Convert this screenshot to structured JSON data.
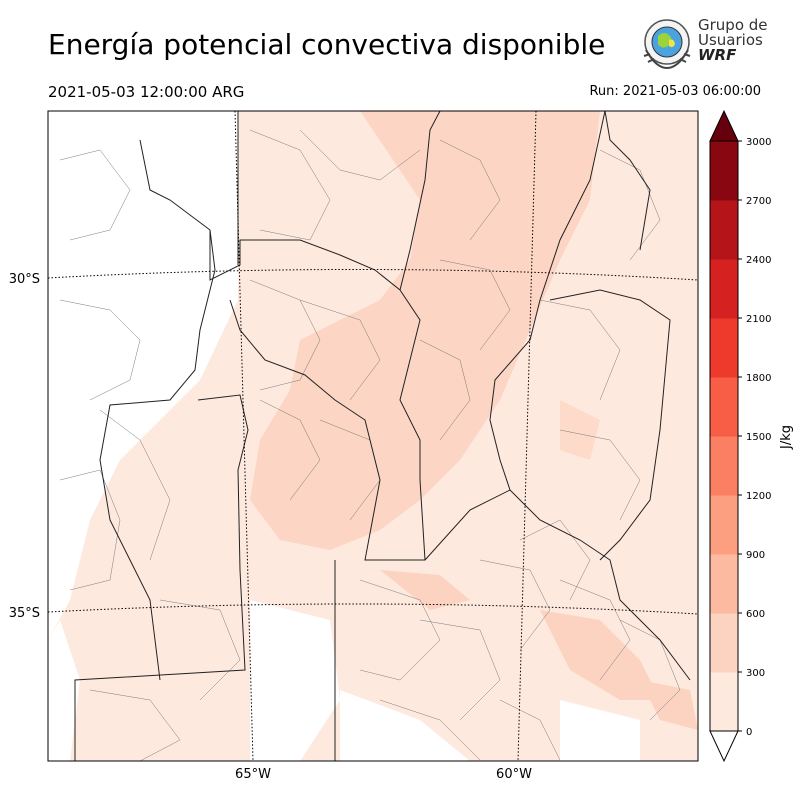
{
  "header": {
    "title": "Energía potencial convectiva disponible",
    "valid_time": "2021-05-03 12:00:00 ARG",
    "run_label": "Run: 2021-05-03 06:00:00"
  },
  "logo": {
    "line1": "Grupo de",
    "line2": "Usuarios",
    "line3": "WRF",
    "icon": "globe-emblem-icon"
  },
  "map": {
    "lat_labels": [
      "30°S",
      "35°S"
    ],
    "lon_labels": [
      "65°W",
      "60°W"
    ]
  },
  "colorbar": {
    "unit": "J/kg",
    "ticks": [
      "0",
      "300",
      "600",
      "900",
      "1200",
      "1500",
      "1800",
      "2100",
      "2400",
      "2700",
      "3000"
    ],
    "colors": [
      "#fee9df",
      "#fcd3c1",
      "#fcbba1",
      "#fc9e80",
      "#fb7f62",
      "#f85e45",
      "#ee3a2c",
      "#d52221",
      "#b51419",
      "#880711"
    ],
    "over_color": "#67000d",
    "under_color": "#ffffff"
  }
}
